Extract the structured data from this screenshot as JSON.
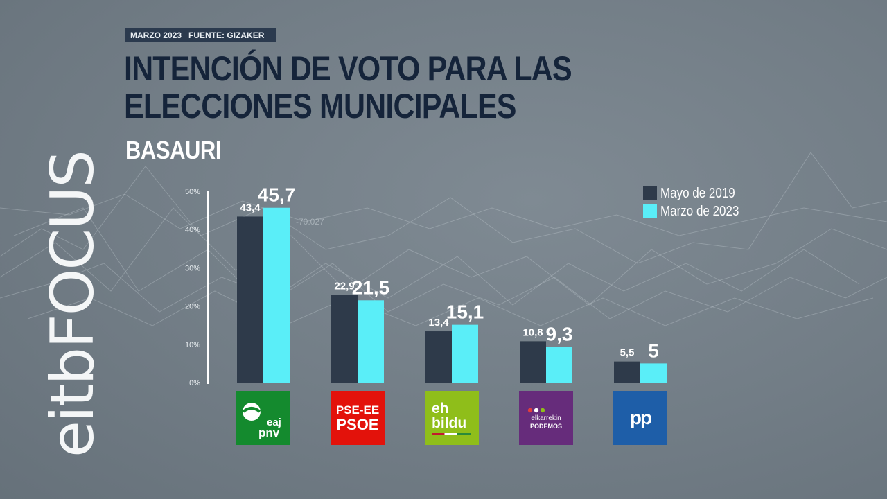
{
  "header": {
    "date": "MARZO 2023",
    "source": "FUENTE: GIZAKER",
    "title": "INTENCIÓN DE VOTO PARA LAS ELECCIONES MUNICIPALES",
    "subtitle": "BASAURI"
  },
  "brand": "eitbFOCUS",
  "background_annotation": "-70.027",
  "colors": {
    "series_2019": "#2e3a4a",
    "series_2023": "#5aeef8",
    "title": "#15243a",
    "source_tag": "#2b3a4e"
  },
  "chart_data": {
    "type": "bar",
    "title": "INTENCIÓN DE VOTO PARA LAS ELECCIONES MUNICIPALES",
    "subtitle": "BASAURI",
    "categories": [
      "EAJ-PNV",
      "PSE-EE PSOE",
      "EH Bildu",
      "Elkarrekin Podemos",
      "PP"
    ],
    "series": [
      {
        "name": "Mayo de 2019",
        "values": [
          43.4,
          22.9,
          13.4,
          10.8,
          5.5
        ],
        "labels": [
          "43,4",
          "22,9",
          "13,4",
          "10,8",
          "5,5"
        ]
      },
      {
        "name": "Marzo de 2023",
        "values": [
          45.7,
          21.5,
          15.1,
          9.3,
          5.0
        ],
        "labels": [
          "45,7",
          "21,5",
          "15,1",
          "9,3",
          "5"
        ]
      }
    ],
    "yticks": [
      "0%",
      "10%",
      "20%",
      "30%",
      "40%",
      "50%"
    ],
    "ylim": [
      0,
      50
    ],
    "grid": false,
    "legend_position": "top-right"
  },
  "logos": {
    "pnv": {
      "line1": "eaj",
      "line2": "pnv"
    },
    "psoe": {
      "line1": "PSE-EE",
      "line2": "PSOE"
    },
    "bildu": {
      "line1": "eh",
      "line2": "bildu"
    },
    "podemos": {
      "line1": "elkarrekin",
      "line2": "PODEMOS"
    },
    "pp": {
      "line1": "pp"
    }
  }
}
